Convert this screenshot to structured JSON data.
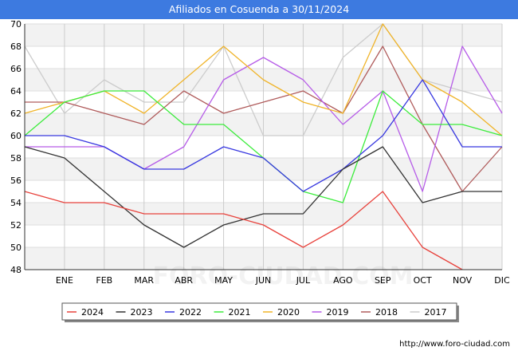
{
  "page": {
    "title": "Afiliados en Cosuenda a 30/11/2024",
    "source": "http://www.foro-ciudad.com",
    "watermark": "FORO-CIUDAD.COM"
  },
  "chart_data": {
    "type": "line",
    "title": "Afiliados en Cosuenda a 30/11/2024",
    "xlabel": "",
    "ylabel": "",
    "categories": [
      "",
      "ENE",
      "FEB",
      "MAR",
      "ABR",
      "MAY",
      "JUN",
      "JUL",
      "AGO",
      "SEP",
      "OCT",
      "NOV",
      "DIC"
    ],
    "ylim": [
      48,
      70
    ],
    "yticks": [
      48,
      50,
      52,
      54,
      56,
      58,
      60,
      62,
      64,
      66,
      68,
      70
    ],
    "grid": true,
    "legend_position": "bottom",
    "series": [
      {
        "name": "2024",
        "color": "#e8423c",
        "values": [
          55,
          54,
          54,
          53,
          53,
          53,
          52,
          50,
          52,
          55,
          50,
          48,
          null
        ]
      },
      {
        "name": "2023",
        "color": "#333333",
        "values": [
          59,
          58,
          55,
          52,
          50,
          52,
          53,
          53,
          57,
          59,
          54,
          55,
          55
        ]
      },
      {
        "name": "2022",
        "color": "#3838e0",
        "values": [
          60,
          60,
          59,
          57,
          57,
          59,
          58,
          55,
          57,
          60,
          65,
          59,
          59
        ]
      },
      {
        "name": "2021",
        "color": "#3cec3c",
        "values": [
          60,
          63,
          64,
          64,
          61,
          61,
          58,
          55,
          54,
          64,
          61,
          61,
          60
        ]
      },
      {
        "name": "2020",
        "color": "#f0b429",
        "values": [
          62,
          63,
          64,
          62,
          65,
          68,
          65,
          63,
          62,
          70,
          65,
          63,
          60
        ]
      },
      {
        "name": "2019",
        "color": "#b65ce8",
        "values": [
          59,
          59,
          59,
          57,
          59,
          65,
          67,
          65,
          61,
          64,
          55,
          68,
          62
        ]
      },
      {
        "name": "2018",
        "color": "#b05c5c",
        "values": [
          63,
          63,
          62,
          61,
          64,
          62,
          63,
          64,
          62,
          68,
          61,
          55,
          59
        ]
      },
      {
        "name": "2017",
        "color": "#cccccc",
        "values": [
          68,
          62,
          65,
          63,
          63,
          68,
          60,
          60,
          67,
          70,
          65,
          64,
          63
        ]
      }
    ]
  }
}
